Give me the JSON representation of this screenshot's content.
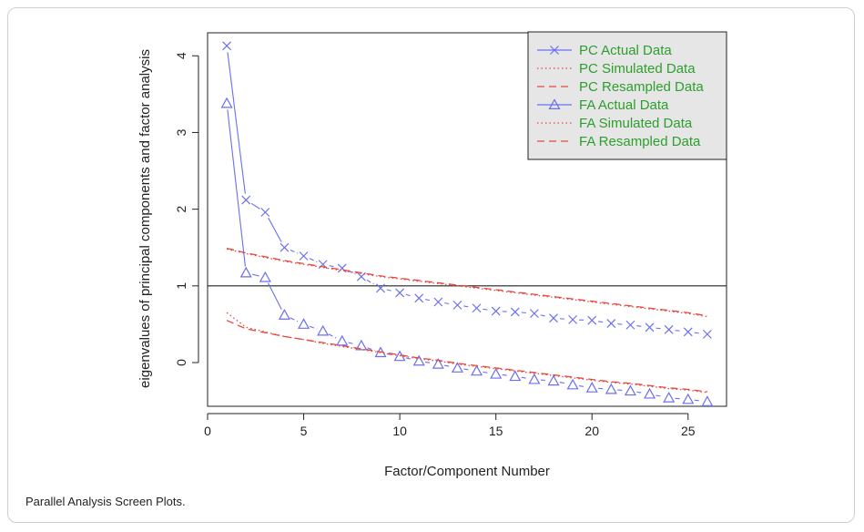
{
  "caption": "Parallel Analysis Screen Plots.",
  "chart_data": {
    "type": "line",
    "title": "",
    "xlabel": "Factor/Component Number",
    "ylabel": "eigenvalues of principal components and factor analysis",
    "xlim": [
      0,
      27
    ],
    "ylim": [
      -0.57,
      4.3
    ],
    "xticks": [
      0,
      5,
      10,
      15,
      20,
      25
    ],
    "yticks": [
      0,
      1,
      2,
      3,
      4
    ],
    "reference_line_y": 1,
    "legend_position": "top-right",
    "colors": {
      "actual": "#6a6ff0",
      "simulated": "#e8473c",
      "resampled": "#e8473c",
      "legend_text": "#2e9e2e",
      "legend_bg": "#e6e6e6"
    },
    "x": [
      1,
      2,
      3,
      4,
      5,
      6,
      7,
      8,
      9,
      10,
      11,
      12,
      13,
      14,
      15,
      16,
      17,
      18,
      19,
      20,
      21,
      22,
      23,
      24,
      25,
      26
    ],
    "series": [
      {
        "name": "PC  Actual Data",
        "style": "actual",
        "marker": "x",
        "values": [
          4.13,
          2.12,
          1.96,
          1.5,
          1.39,
          1.28,
          1.23,
          1.12,
          0.97,
          0.91,
          0.84,
          0.79,
          0.75,
          0.71,
          0.67,
          0.66,
          0.64,
          0.58,
          0.56,
          0.55,
          0.51,
          0.49,
          0.46,
          0.43,
          0.4,
          0.37
        ]
      },
      {
        "name": "PC  Simulated Data",
        "style": "simulated",
        "marker": "",
        "values": [
          1.48,
          1.42,
          1.37,
          1.32,
          1.28,
          1.24,
          1.2,
          1.16,
          1.12,
          1.09,
          1.06,
          1.03,
          1.0,
          0.97,
          0.94,
          0.91,
          0.88,
          0.85,
          0.82,
          0.79,
          0.76,
          0.73,
          0.7,
          0.67,
          0.64,
          0.6
        ]
      },
      {
        "name": "PC  Resampled Data",
        "style": "resampled",
        "marker": "",
        "values": [
          1.49,
          1.43,
          1.38,
          1.33,
          1.29,
          1.25,
          1.21,
          1.17,
          1.13,
          1.1,
          1.07,
          1.04,
          1.01,
          0.98,
          0.95,
          0.92,
          0.89,
          0.86,
          0.83,
          0.8,
          0.77,
          0.74,
          0.71,
          0.68,
          0.65,
          0.61
        ]
      },
      {
        "name": "FA  Actual Data",
        "style": "actual",
        "marker": "triangle",
        "values": [
          3.38,
          1.17,
          1.11,
          0.62,
          0.5,
          0.41,
          0.28,
          0.22,
          0.13,
          0.08,
          0.02,
          -0.02,
          -0.07,
          -0.11,
          -0.15,
          -0.18,
          -0.22,
          -0.24,
          -0.29,
          -0.33,
          -0.35,
          -0.37,
          -0.41,
          -0.46,
          -0.48,
          -0.51
        ]
      },
      {
        "name": "FA  Simulated Data",
        "style": "simulated",
        "marker": "",
        "values": [
          0.65,
          0.46,
          0.4,
          0.34,
          0.3,
          0.25,
          0.21,
          0.17,
          0.13,
          0.09,
          0.05,
          0.02,
          -0.02,
          -0.05,
          -0.08,
          -0.11,
          -0.14,
          -0.17,
          -0.2,
          -0.23,
          -0.26,
          -0.28,
          -0.31,
          -0.34,
          -0.36,
          -0.39
        ]
      },
      {
        "name": "FA  Resampled Data",
        "style": "resampled",
        "marker": "",
        "values": [
          0.55,
          0.44,
          0.39,
          0.34,
          0.3,
          0.26,
          0.22,
          0.18,
          0.14,
          0.1,
          0.06,
          0.03,
          -0.01,
          -0.04,
          -0.07,
          -0.1,
          -0.13,
          -0.16,
          -0.19,
          -0.22,
          -0.25,
          -0.27,
          -0.3,
          -0.33,
          -0.35,
          -0.38
        ]
      }
    ]
  }
}
